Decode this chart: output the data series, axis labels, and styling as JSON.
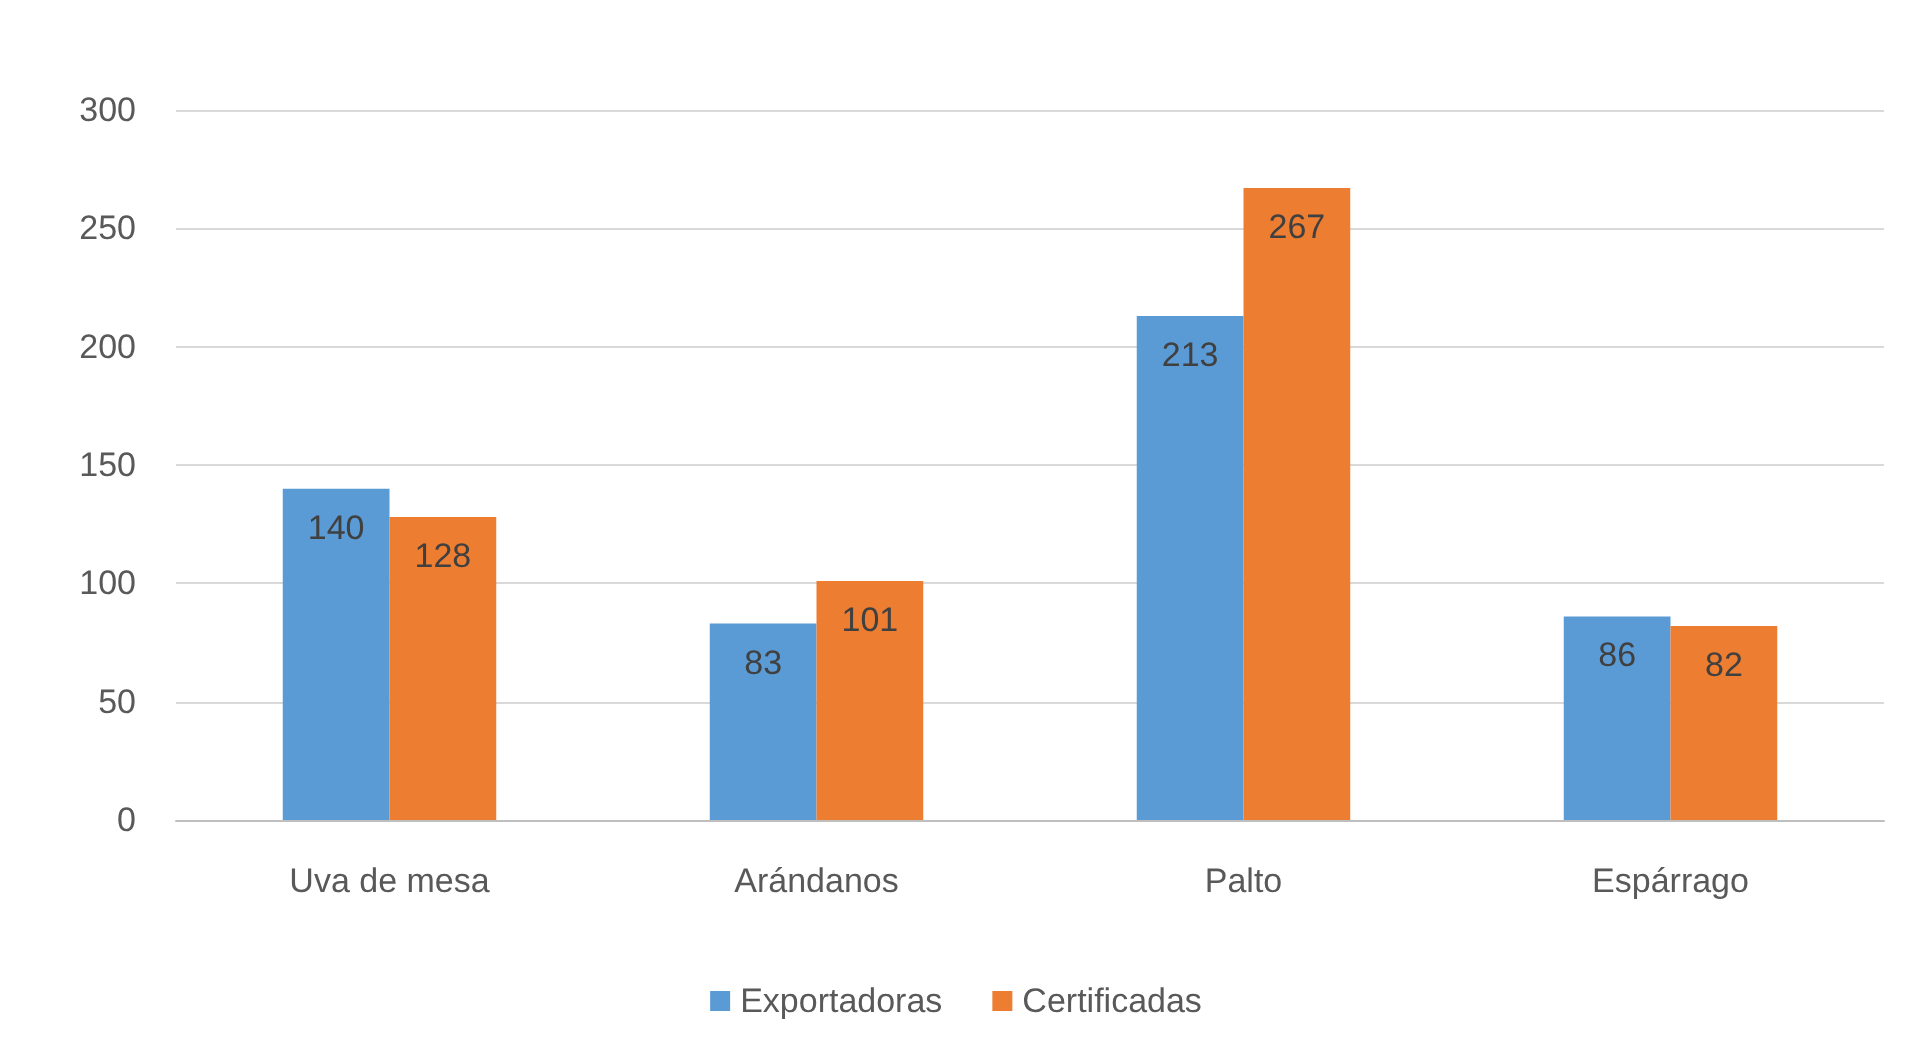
{
  "chart_data": {
    "type": "bar",
    "categories": [
      "Uva de mesa",
      "Arándanos",
      "Palto",
      "Espárrago"
    ],
    "series": [
      {
        "name": "Exportadoras",
        "color": "#5b9bd5",
        "values": [
          140,
          83,
          213,
          86
        ]
      },
      {
        "name": "Certificadas",
        "color": "#ed7d31",
        "values": [
          128,
          101,
          267,
          82
        ]
      }
    ],
    "ylim": [
      0,
      300
    ],
    "yticks": [
      0,
      50,
      100,
      150,
      200,
      250,
      300
    ],
    "grid": "y",
    "legend": "bottom",
    "data_labels": true
  }
}
